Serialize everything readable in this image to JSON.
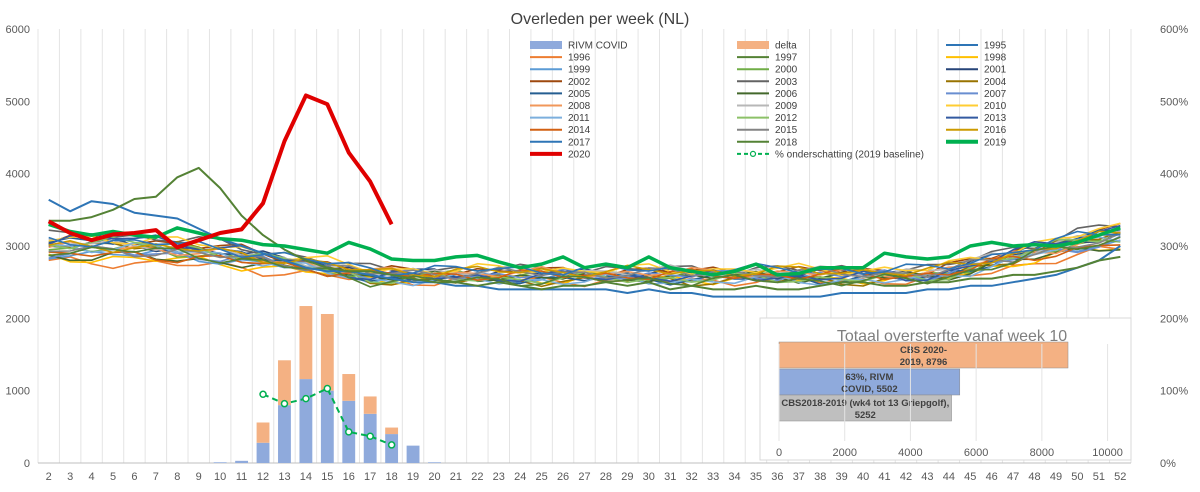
{
  "chart_data": {
    "type": "line",
    "title": "Overleden per week (NL)",
    "x": [
      2,
      3,
      4,
      5,
      6,
      7,
      8,
      9,
      10,
      11,
      12,
      13,
      14,
      15,
      16,
      17,
      18,
      19,
      20,
      21,
      22,
      23,
      24,
      25,
      26,
      27,
      28,
      29,
      30,
      31,
      32,
      33,
      34,
      35,
      36,
      37,
      38,
      39,
      40,
      41,
      42,
      43,
      44,
      45,
      46,
      47,
      48,
      49,
      50,
      51,
      52
    ],
    "ylim": [
      0,
      6000
    ],
    "yticks": [
      0,
      1000,
      2000,
      3000,
      4000,
      5000,
      6000
    ],
    "y2lim": [
      0,
      600
    ],
    "y2ticks": [
      "0%",
      "100%",
      "200%",
      "300%",
      "400%",
      "500%",
      "600%"
    ],
    "grid": "vertical",
    "bars": {
      "rivm_covid": {
        "name": "RIVM COVID",
        "color": "#8faadc",
        "weeks": [
          10,
          11,
          12,
          13,
          14,
          15,
          16,
          17,
          18,
          19,
          20
        ],
        "values": [
          10,
          30,
          280,
          800,
          1160,
          1000,
          860,
          680,
          400,
          240,
          10
        ]
      },
      "delta": {
        "name": "delta",
        "color": "#f4b183",
        "weeks": [
          12,
          13,
          14,
          15,
          16,
          17,
          18
        ],
        "values": [
          280,
          620,
          1010,
          1060,
          370,
          240,
          90
        ]
      }
    },
    "line_2020": {
      "name": "2020",
      "color": "#e00000",
      "weeks": [
        2,
        3,
        4,
        5,
        6,
        7,
        8,
        9,
        10,
        11,
        12,
        13,
        14,
        15,
        16,
        17,
        18
      ],
      "values": [
        3340,
        3180,
        3080,
        3160,
        3180,
        3220,
        2980,
        3080,
        3180,
        3230,
        3590,
        4450,
        5080,
        4960,
        4290,
        3890,
        3300
      ]
    },
    "line_2019": {
      "name": "2019",
      "color": "#00b050",
      "values": [
        3300,
        3200,
        3150,
        3200,
        3150,
        3120,
        3250,
        3180,
        3100,
        3080,
        3020,
        3000,
        2950,
        2900,
        3050,
        2960,
        2820,
        2800,
        2800,
        2850,
        2870,
        2780,
        2700,
        2750,
        2850,
        2700,
        2750,
        2700,
        2850,
        2700,
        2650,
        2600,
        2650,
        2750,
        2600,
        2620,
        2700,
        2700,
        2700,
        2900,
        2850,
        2820,
        2850,
        3000,
        3050,
        3000,
        3020,
        3000,
        3050,
        3150,
        3250
      ]
    },
    "line_1997": {
      "name": "1997",
      "color": "#548235",
      "values": [
        3350,
        3350,
        3400,
        3500,
        3650,
        3680,
        3950,
        4080,
        3800,
        3420,
        3150,
        2950,
        2800,
        2700,
        2650,
        2650,
        2600,
        2550,
        2500,
        2500,
        2450,
        2500,
        2450,
        2400,
        2450,
        2450,
        2500,
        2450,
        2500,
        2400,
        2450,
        2400,
        2400,
        2450,
        2400,
        2400,
        2450,
        2500,
        2500,
        2450,
        2450,
        2500,
        2500,
        2550,
        2550,
        2600,
        2600,
        2650,
        2700,
        2800,
        2850
      ]
    },
    "line_1995": {
      "name": "1995",
      "color": "#2e75b6",
      "values": [
        3640,
        3480,
        3620,
        3580,
        3460,
        3420,
        3380,
        3240,
        3100,
        3000,
        2900,
        2800,
        2700,
        2650,
        2650,
        2600,
        2550,
        2500,
        2500,
        2450,
        2450,
        2400,
        2400,
        2400,
        2400,
        2400,
        2400,
        2350,
        2400,
        2350,
        2350,
        2300,
        2300,
        2300,
        2300,
        2300,
        2300,
        2350,
        2350,
        2350,
        2350,
        2400,
        2400,
        2450,
        2450,
        2500,
        2550,
        2600,
        2700,
        2800,
        3000
      ]
    },
    "series": [
      {
        "name": "1996",
        "color": "#ed7d31"
      },
      {
        "name": "1998",
        "color": "#ffc000"
      },
      {
        "name": "1999",
        "color": "#5b9bd5"
      },
      {
        "name": "2000",
        "color": "#70ad47"
      },
      {
        "name": "2001",
        "color": "#264478"
      },
      {
        "name": "2002",
        "color": "#9e480e"
      },
      {
        "name": "2003",
        "color": "#636363"
      },
      {
        "name": "2004",
        "color": "#997300"
      },
      {
        "name": "2005",
        "color": "#255e91"
      },
      {
        "name": "2006",
        "color": "#43682b"
      },
      {
        "name": "2007",
        "color": "#698ed0"
      },
      {
        "name": "2008",
        "color": "#f1975a"
      },
      {
        "name": "2009",
        "color": "#b7b7b7"
      },
      {
        "name": "2010",
        "color": "#ffcd33"
      },
      {
        "name": "2011",
        "color": "#7cafdd"
      },
      {
        "name": "2012",
        "color": "#8cc168"
      },
      {
        "name": "2013",
        "color": "#335aa1"
      },
      {
        "name": "2014",
        "color": "#d26012"
      },
      {
        "name": "2015",
        "color": "#848484"
      },
      {
        "name": "2016",
        "color": "#cc9a00"
      },
      {
        "name": "2017",
        "color": "#2e75b6"
      },
      {
        "name": "2018",
        "color": "#548235"
      }
    ],
    "pct_line": {
      "name": "% onderschatting (2019 baseline)",
      "color": "#00b050",
      "weeks": [
        12,
        13,
        14,
        15,
        16,
        17,
        18
      ],
      "values": [
        95,
        82,
        89,
        103,
        43,
        37,
        25
      ]
    },
    "legend": [
      "RIVM COVID",
      "delta",
      "1995",
      "1996",
      "1997",
      "1998",
      "1999",
      "2000",
      "2001",
      "2002",
      "2003",
      "2004",
      "2005",
      "2006",
      "2007",
      "2008",
      "2009",
      "2010",
      "2011",
      "2012",
      "2013",
      "2014",
      "2015",
      "2016",
      "2017",
      "2018",
      "2019",
      "2020",
      "% onderschatting (2019 baseline)"
    ],
    "inset": {
      "type": "bar",
      "title": "Totaal oversterfte vanaf week 10",
      "xlim": [
        0,
        10500
      ],
      "xticks": [
        "0",
        "2000",
        "4000",
        "6000",
        "8000",
        "10000"
      ],
      "bars": [
        {
          "value": 8796,
          "label_line1": "CBS 2020-",
          "label_line2": "2019, 8796",
          "color": "#f4b183"
        },
        {
          "value": 5502,
          "label_line1": "63%, RIVM",
          "label_line2": "COVID, 5502",
          "color": "#8faadc"
        },
        {
          "value": 5252,
          "label_line1": "CBS2018-2019 (wk4 tot 13 Griepgolf),",
          "label_line2": "5252",
          "color": "#bfbfbf"
        }
      ]
    }
  }
}
